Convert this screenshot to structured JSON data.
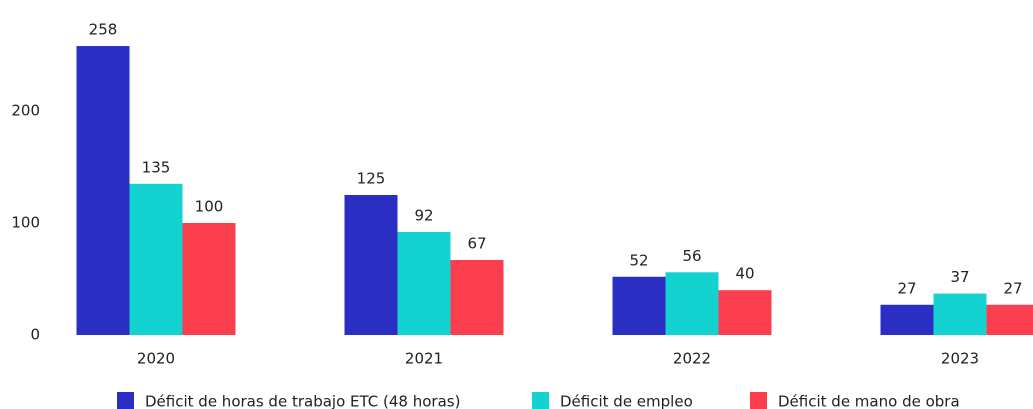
{
  "chart_data": {
    "type": "bar",
    "categories": [
      "2020",
      "2021",
      "2022",
      "2023"
    ],
    "series": [
      {
        "name": "Déficit de horas de trabajo ETC (48 horas)",
        "color": "#2a2ec2",
        "values": [
          258,
          125,
          52,
          27
        ]
      },
      {
        "name": "Déficit de empleo",
        "color": "#14d2cf",
        "values": [
          135,
          92,
          56,
          37
        ]
      },
      {
        "name": "Déficit de mano de obra",
        "color": "#fb3e4e",
        "values": [
          100,
          67,
          40,
          27
        ]
      }
    ],
    "ylim": [
      0,
      280
    ],
    "yticks": [
      0,
      100,
      200
    ],
    "grid": false,
    "legend": "bottom"
  }
}
